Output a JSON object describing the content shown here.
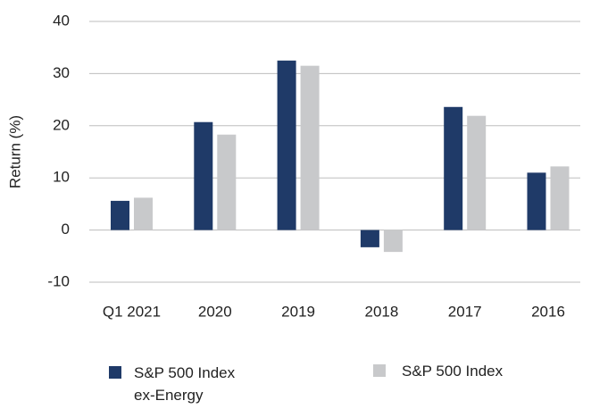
{
  "chart_data": {
    "type": "bar",
    "y_axis_label": "Return (%)",
    "categories": [
      "Q1 2021",
      "2020",
      "2019",
      "2018",
      "2017",
      "2016"
    ],
    "series": [
      {
        "name": "S&P 500 Index ex-Energy",
        "color": "#1f3a68",
        "values": [
          5.6,
          20.7,
          32.5,
          -3.3,
          23.6,
          11.0
        ]
      },
      {
        "name": "S&P 500 Index",
        "color": "#c8c9cb",
        "values": [
          6.2,
          18.3,
          31.5,
          -4.2,
          21.9,
          12.2
        ]
      }
    ],
    "ylim": [
      -10,
      40
    ],
    "yticks": [
      -10,
      0,
      10,
      20,
      30,
      40
    ],
    "grid": true,
    "legend": "bottom"
  }
}
